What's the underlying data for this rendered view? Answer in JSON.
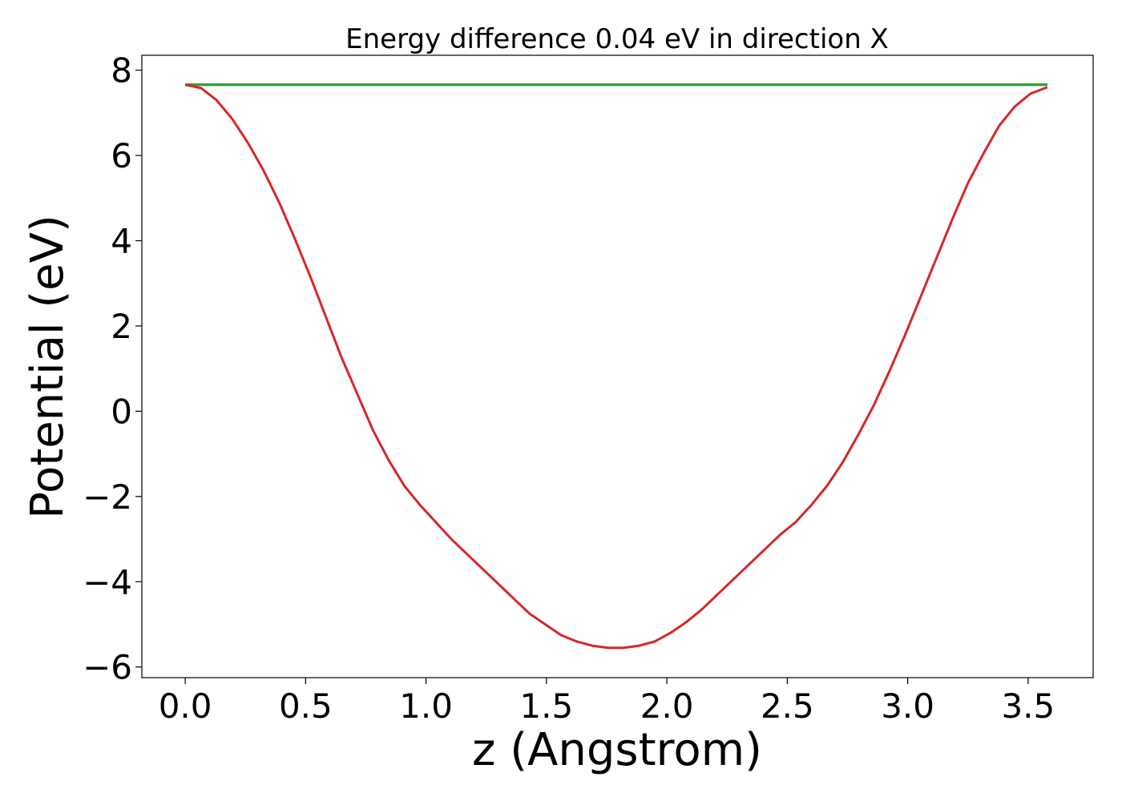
{
  "chart_data": {
    "type": "line",
    "title": "Energy difference 0.04 eV in direction X",
    "xlabel": "z (Angstrom)",
    "ylabel": "Potential (eV)",
    "xlim": [
      -0.18,
      3.77
    ],
    "ylim": [
      -6.25,
      8.35
    ],
    "xticks": [
      0.0,
      0.5,
      1.0,
      1.5,
      2.0,
      2.5,
      3.0,
      3.5
    ],
    "xtick_labels": [
      "0.0",
      "0.5",
      "1.0",
      "1.5",
      "2.0",
      "2.5",
      "3.0",
      "3.5"
    ],
    "yticks": [
      -6,
      -4,
      -2,
      0,
      2,
      4,
      6,
      8
    ],
    "ytick_labels": [
      "−6",
      "−4",
      "−2",
      "0",
      "2",
      "4",
      "6",
      "8"
    ],
    "grid": false,
    "series": [
      {
        "color": "#1f77b4",
        "x": [
          0.0,
          3.58
        ],
        "y": [
          7.66,
          7.66
        ]
      },
      {
        "color": "#2ca02c",
        "x": [
          0.0,
          3.58
        ],
        "y": [
          7.66,
          7.66
        ]
      },
      {
        "color": "#d62728",
        "x": [
          0.0,
          0.066,
          0.13,
          0.196,
          0.26,
          0.325,
          0.39,
          0.455,
          0.52,
          0.585,
          0.65,
          0.715,
          0.78,
          0.845,
          0.91,
          0.975,
          1.04,
          1.105,
          1.17,
          1.235,
          1.3,
          1.365,
          1.43,
          1.495,
          1.56,
          1.625,
          1.69,
          1.755,
          1.82,
          1.885,
          1.95,
          2.015,
          2.08,
          2.145,
          2.21,
          2.275,
          2.34,
          2.405,
          2.47,
          2.535,
          2.6,
          2.665,
          2.73,
          2.795,
          2.86,
          2.925,
          2.99,
          3.055,
          3.12,
          3.185,
          3.25,
          3.315,
          3.38,
          3.445,
          3.51,
          3.58
        ],
        "y": [
          7.66,
          7.58,
          7.3,
          6.85,
          6.3,
          5.65,
          4.9,
          4.05,
          3.15,
          2.2,
          1.25,
          0.4,
          -0.45,
          -1.15,
          -1.75,
          -2.2,
          -2.6,
          -3.0,
          -3.35,
          -3.7,
          -4.05,
          -4.4,
          -4.75,
          -5.0,
          -5.25,
          -5.4,
          -5.5,
          -5.55,
          -5.55,
          -5.5,
          -5.4,
          -5.2,
          -4.95,
          -4.65,
          -4.3,
          -3.95,
          -3.6,
          -3.25,
          -2.9,
          -2.6,
          -2.2,
          -1.75,
          -1.2,
          -0.55,
          0.15,
          0.95,
          1.8,
          2.7,
          3.6,
          4.5,
          5.35,
          6.05,
          6.7,
          7.15,
          7.45,
          7.6
        ]
      }
    ]
  }
}
